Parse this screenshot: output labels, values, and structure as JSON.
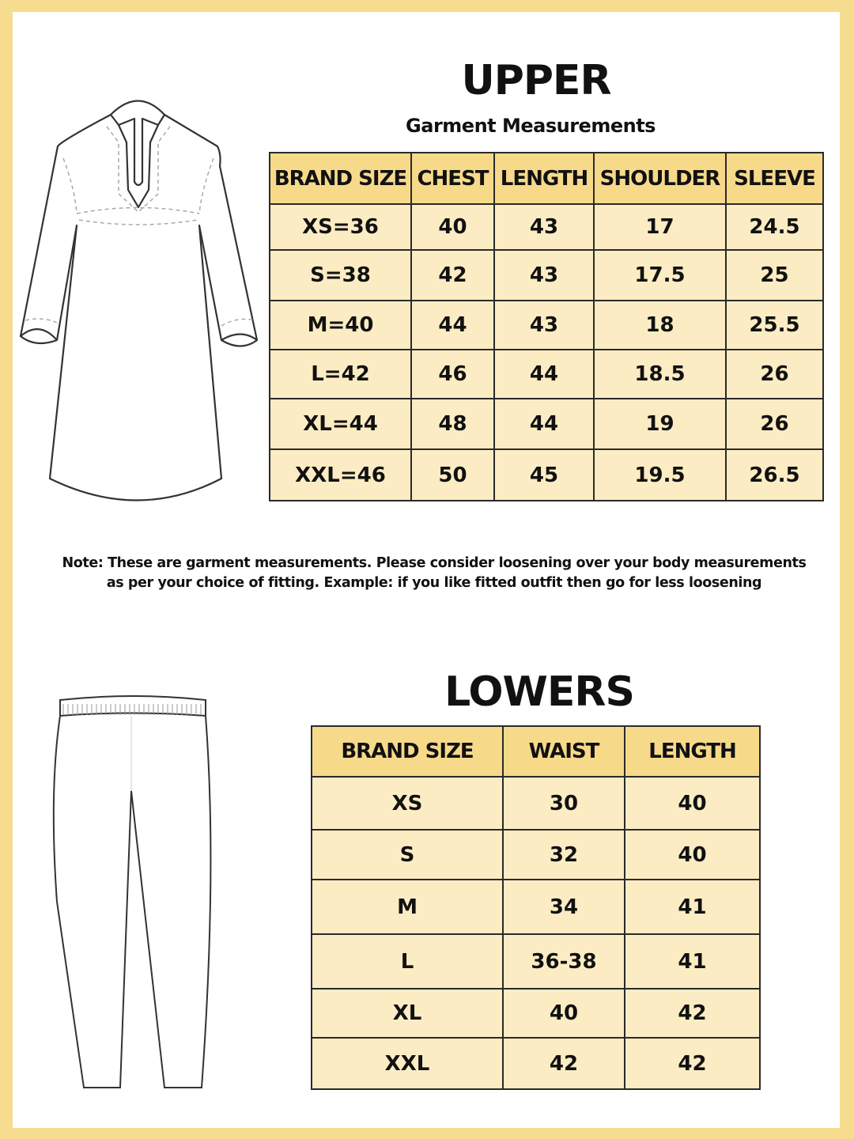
{
  "upper": {
    "title": "UPPER",
    "subtitle": "Garment Measurements",
    "headers": [
      "BRAND SIZE",
      "CHEST",
      "LENGTH",
      "SHOULDER",
      "SLEEVE"
    ],
    "rows": [
      [
        "XS=36",
        "40",
        "43",
        "17",
        "24.5"
      ],
      [
        "S=38",
        "42",
        "43",
        "17.5",
        "25"
      ],
      [
        "M=40",
        "44",
        "43",
        "18",
        "25.5"
      ],
      [
        "L=42",
        "46",
        "44",
        "18.5",
        "26"
      ],
      [
        "XL=44",
        "48",
        "44",
        "19",
        "26"
      ],
      [
        "XXL=46",
        "50",
        "45",
        "19.5",
        "26.5"
      ]
    ]
  },
  "note": {
    "line1": "Note: These are garment measurements. Please consider loosening over your body measurements",
    "line2": "as per your choice of fitting. Example: if you like fitted outfit then go for less loosening"
  },
  "lowers": {
    "title": "LOWERS",
    "headers": [
      "BRAND SIZE",
      "WAIST",
      "LENGTH"
    ],
    "rows": [
      [
        "XS",
        "30",
        "40"
      ],
      [
        "S",
        "32",
        "40"
      ],
      [
        "M",
        "34",
        "41"
      ],
      [
        "L",
        "36-38",
        "41"
      ],
      [
        "XL",
        "40",
        "42"
      ],
      [
        "XXL",
        "42",
        "42"
      ]
    ]
  },
  "colors": {
    "border": "#f6dc8f",
    "header_fill": "#f7d98a",
    "cell_fill": "#fbecc3"
  },
  "icons": {
    "upper_illustration": "kurta-icon",
    "lower_illustration": "pants-icon"
  }
}
